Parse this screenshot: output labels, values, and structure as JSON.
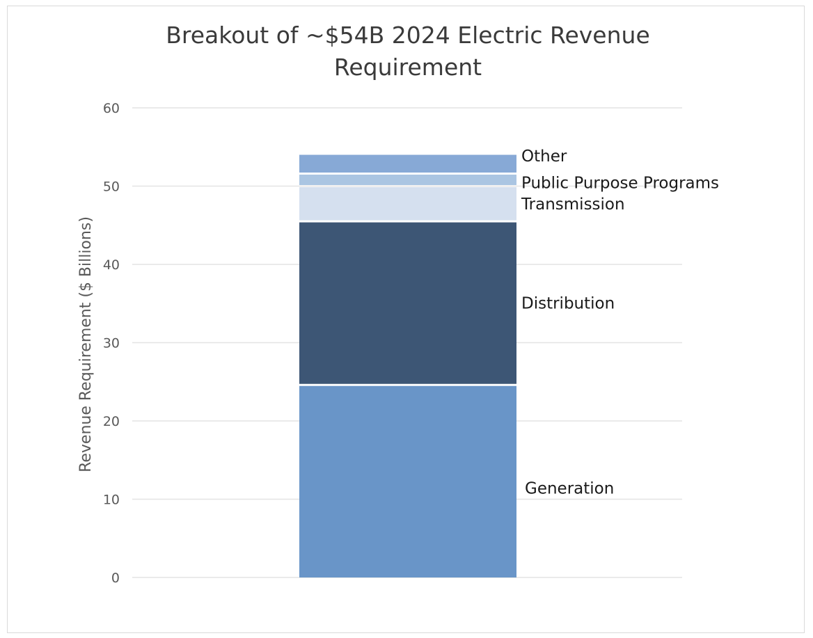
{
  "chart_data": {
    "type": "bar",
    "stacked": true,
    "title_lines": [
      "Breakout of ~$54B 2024 Electric Revenue",
      "Requirement"
    ],
    "xlabel": "",
    "ylabel": "Revenue Requirement ($ Billions)",
    "ylim": [
      0,
      60
    ],
    "yticks": [
      "0",
      "10",
      "20",
      "30",
      "40",
      "50",
      "60"
    ],
    "grid": true,
    "categories": [
      ""
    ],
    "series": [
      {
        "name": "Generation",
        "values": [
          24.6
        ],
        "color": "#6995c8"
      },
      {
        "name": "Distribution",
        "values": [
          20.9
        ],
        "color": "#3d5675"
      },
      {
        "name": "Transmission",
        "values": [
          4.5
        ],
        "color": "#d5e0ef"
      },
      {
        "name": "Public Purpose Programs",
        "values": [
          1.6
        ],
        "color": "#aac5e2"
      },
      {
        "name": "Other",
        "values": [
          2.4
        ],
        "color": "#87a9d6"
      }
    ]
  }
}
